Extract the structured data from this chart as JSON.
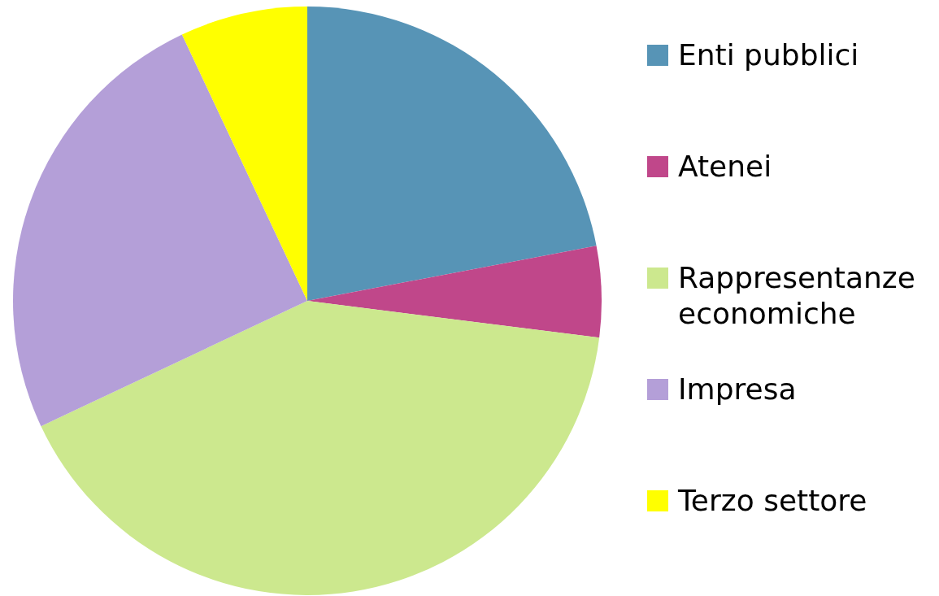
{
  "chart_data": {
    "type": "pie",
    "categories": [
      "Enti pubblici",
      "Atenei",
      "Rappresentanze economiche",
      "Impresa",
      "Terzo settore"
    ],
    "values": [
      22,
      5,
      41,
      25,
      7
    ],
    "colors": [
      "#5794b6",
      "#c0478a",
      "#cce88e",
      "#b49fd8",
      "#ffff00"
    ],
    "legend": "right"
  }
}
